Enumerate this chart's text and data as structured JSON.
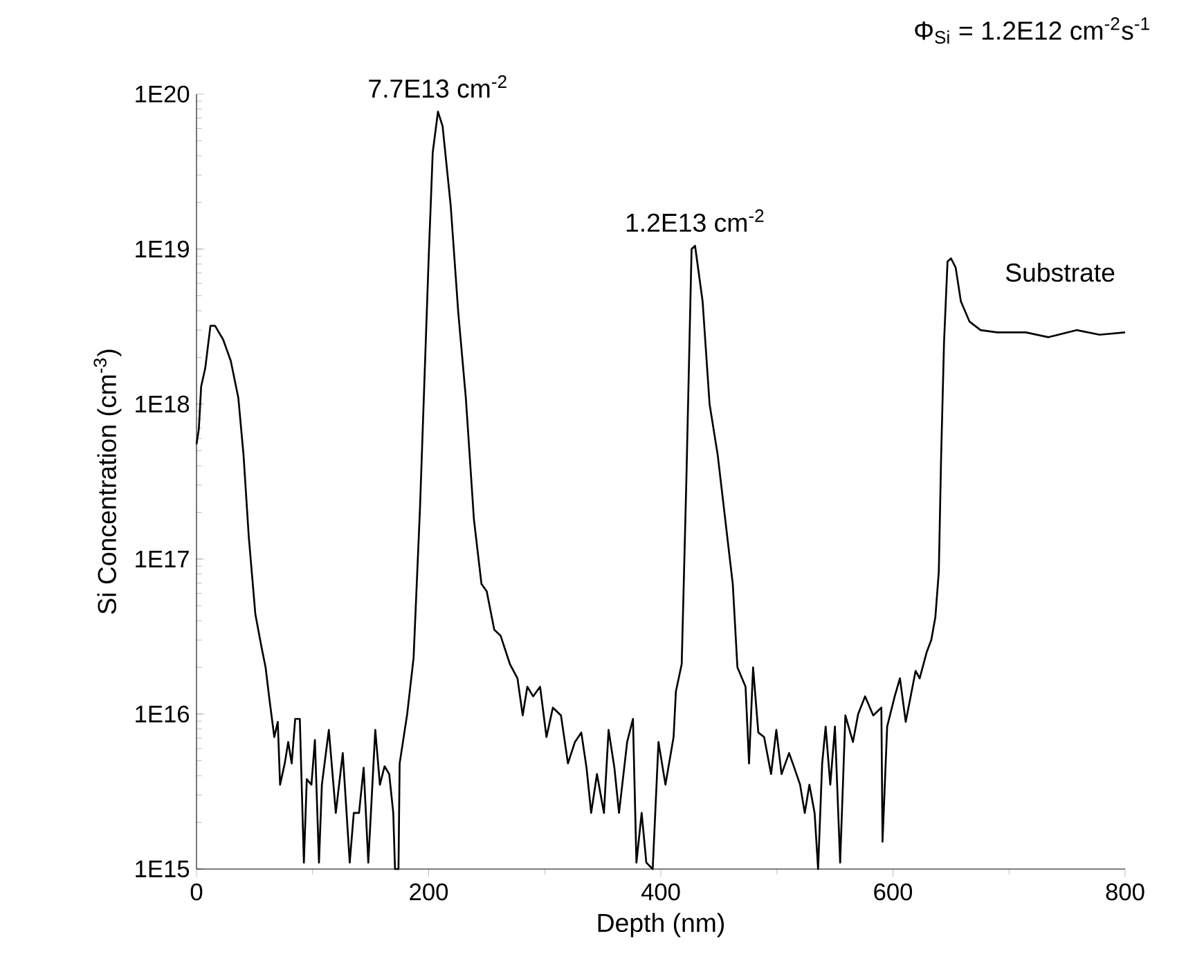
{
  "chart_data": {
    "type": "line",
    "xlabel": "Depth (nm)",
    "ylabel": "Si Concentration (cm$^{-3}$)",
    "log": "y",
    "marker": "none",
    "line_style": "solid",
    "xlim": [
      0,
      800
    ],
    "xticks": [
      0,
      200,
      400,
      600,
      800
    ],
    "ylim": [
      1000000000000000.0,
      1e+20
    ],
    "yticks": [
      {
        "value": 1000000000000000.0,
        "label": "1E15"
      },
      {
        "value": 1e+16,
        "label": "1E16"
      },
      {
        "value": 1e+17,
        "label": "1E17"
      },
      {
        "value": 1e+18,
        "label": "1E18"
      },
      {
        "value": 1e+19,
        "label": "1E19"
      },
      {
        "value": 1e+20,
        "label": "1E20"
      }
    ],
    "annotations": [
      {
        "text": "7.7E13 cm$^{-2}$",
        "x": 208,
        "y": 7.7e+19
      },
      {
        "text": "1.2E13 cm$^{-2}$",
        "x": 429.5,
        "y": 1.05e+19
      },
      "Substrate",
      "Φ$_{Si}$ = 1.2E12 cm$^{-2}$s$^{-1}$"
    ],
    "series": [
      {
        "color": "#000000",
        "x": [
          0,
          2,
          4,
          7.5,
          12,
          16,
          23,
          29.5,
          36,
          40.5,
          45,
          50.7,
          56,
          59.5,
          62.5,
          67,
          70,
          72,
          76,
          79,
          82,
          85,
          89,
          92.5,
          95,
          99,
          102,
          105.5,
          108,
          114,
          120,
          126,
          132,
          135.5,
          140,
          144,
          148,
          154,
          158,
          162,
          166,
          169.5,
          171,
          174,
          175,
          181.5,
          187,
          192.5,
          200,
          203.5,
          208,
          212,
          219,
          225.5,
          232,
          239,
          245.5,
          250,
          256.5,
          262,
          270,
          276.5,
          281,
          285,
          290,
          296,
          301.5,
          307,
          314,
          320,
          326,
          331.5,
          336,
          340,
          345,
          351,
          355,
          360,
          364,
          371,
          376,
          379,
          383.5,
          387.5,
          393,
          398,
          404,
          411,
          413,
          418,
          422,
          426.5,
          429.5,
          436,
          442,
          449,
          455.5,
          462,
          466,
          473,
          476,
          479.5,
          484,
          489,
          495,
          499.5,
          504,
          510.5,
          515,
          520,
          524,
          528,
          532.5,
          535.5,
          539,
          542,
          546,
          550,
          554.5,
          559,
          565.5,
          570,
          576,
          583,
          590,
          591,
          595,
          601.5,
          606,
          611,
          619.5,
          623,
          629,
          633,
          636.5,
          639.5,
          641.5,
          644,
          647,
          650,
          654,
          658.5,
          666,
          675.5,
          690,
          714.5,
          734,
          758.5,
          778,
          800
        ],
        "values": [
          5.5e+17,
          6.9e+17,
          1.3e+18,
          1.7e+18,
          3.2e+18,
          3.2e+18,
          2.6e+18,
          1.9e+18,
          1.1e+18,
          4.7e+17,
          1.4e+17,
          4.4e+16,
          2.7e+16,
          2e+16,
          1.3e+16,
          7100000000000000.0,
          8900000000000000.0,
          3500000000000000.0,
          4800000000000000.0,
          6600000000000000.0,
          4800000000000000.0,
          9300000000000000.0,
          9300000000000000.0,
          1100000000000000.0,
          3800000000000000.0,
          3500000000000000.0,
          6800000000000000.0,
          1100000000000000.0,
          3500000000000000.0,
          7900000000000000.0,
          2300000000000000.0,
          5600000000000000.0,
          1100000000000000.0,
          2300000000000000.0,
          2300000000000000.0,
          4500000000000000.0,
          1100000000000000.0,
          7900000000000000.0,
          3500000000000000.0,
          4600000000000000.0,
          4100000000000000.0,
          2300000000000000.0,
          1000000000000000.0,
          1000000000000000.0,
          4800000000000000.0,
          1e+16,
          2.3e+16,
          2.1e+17,
          8.7e+18,
          4.2e+19,
          7.7e+19,
          6.2e+19,
          1.9e+19,
          3.9e+18,
          1.1e+18,
          1.8e+17,
          6.9e+16,
          6.2e+16,
          3.5e+16,
          3.2e+16,
          2.1e+16,
          1.7e+16,
          9800000000000000.0,
          1.5e+16,
          1.3e+16,
          1.5e+16,
          7100000000000000.0,
          1.1e+16,
          9800000000000000.0,
          4800000000000000.0,
          6600000000000000.0,
          7600000000000000.0,
          4500000000000000.0,
          2300000000000000.0,
          4100000000000000.0,
          2300000000000000.0,
          7900000000000000.0,
          4500000000000000.0,
          2300000000000000.0,
          6600000000000000.0,
          9300000000000000.0,
          1100000000000000.0,
          2300000000000000.0,
          1100000000000000.0,
          1000000000000000.0,
          6600000000000000.0,
          3500000000000000.0,
          7100000000000000.0,
          1.4e+16,
          2.1e+16,
          3.2e+17,
          1e+19,
          1.05e+19,
          4.6e+18,
          1e+18,
          4.7e+17,
          1.8e+17,
          6.9e+16,
          2e+16,
          1.5e+16,
          4800000000000000.0,
          2e+16,
          7600000000000000.0,
          7100000000000000.0,
          4100000000000000.0,
          7900000000000000.0,
          4100000000000000.0,
          5600000000000000.0,
          4500000000000000.0,
          3500000000000000.0,
          2300000000000000.0,
          3500000000000000.0,
          2300000000000000.0,
          1000000000000000.0,
          4800000000000000.0,
          8300000000000000.0,
          3500000000000000.0,
          8300000000000000.0,
          1100000000000000.0,
          9800000000000000.0,
          6600000000000000.0,
          1e+16,
          1.3e+16,
          9800000000000000.0,
          1.1e+16,
          1500000000000000.0,
          8300000000000000.0,
          1.3e+16,
          1.7e+16,
          8900000000000000.0,
          1.9e+16,
          1.7e+16,
          2.5e+16,
          3e+16,
          4.2e+16,
          8.3e+16,
          4.6e+17,
          2.5e+18,
          8.3e+18,
          8.7e+18,
          7.6e+18,
          4.6e+18,
          3.4e+18,
          3e+18,
          2.9e+18,
          2.9e+18,
          2.7e+18,
          3e+18,
          2.8e+18,
          2.9e+18
        ]
      }
    ]
  }
}
